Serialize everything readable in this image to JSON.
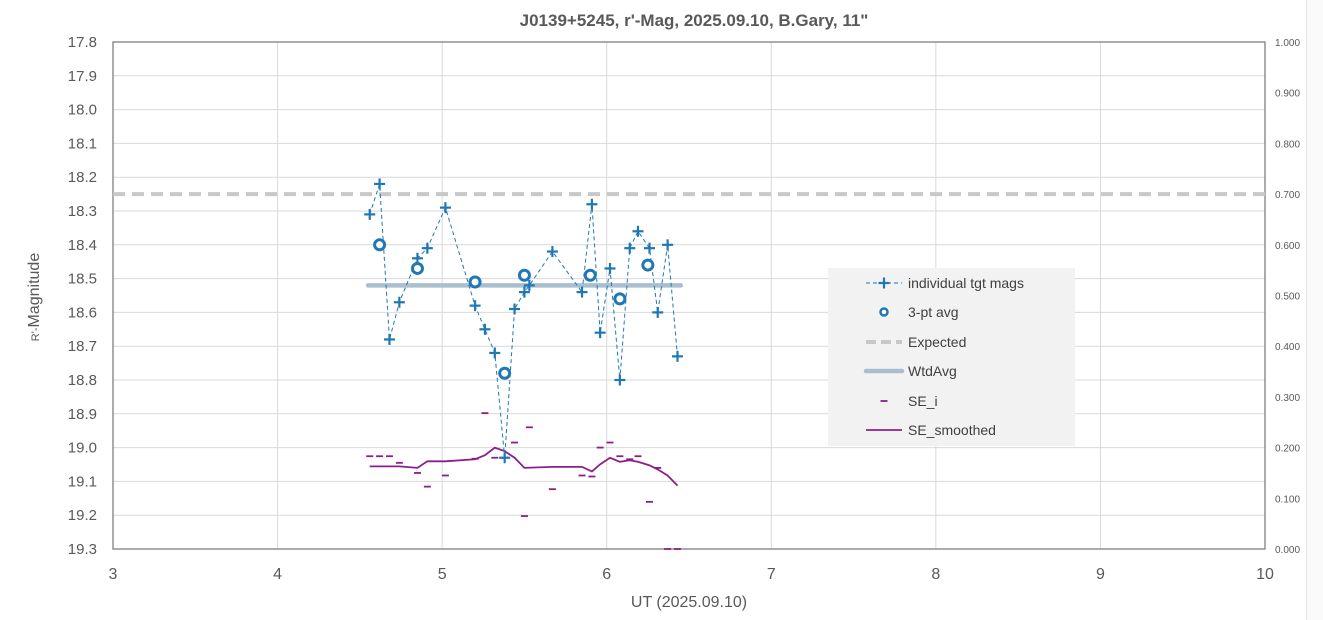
{
  "chart_data": {
    "type": "scatter",
    "title": "J0139+5245, r'-Mag, 2025.09.10, B.Gary, 11\"",
    "xlabel": "UT (2025.09.10)",
    "ylabel_prefix": "R'-",
    "ylabel_main": "Magnitude",
    "xlim": [
      3,
      10
    ],
    "ylim_left": [
      17.8,
      19.3
    ],
    "y_left_inverted": true,
    "ylim_right": [
      0.0,
      1.0
    ],
    "grid": true,
    "legend_position": "right",
    "x_ticks": [
      "3",
      "4",
      "5",
      "6",
      "7",
      "8",
      "9",
      "10"
    ],
    "y_left_ticks": [
      "17.8",
      "17.9",
      "18.0",
      "18.1",
      "18.2",
      "18.3",
      "18.4",
      "18.5",
      "18.6",
      "18.7",
      "18.8",
      "18.9",
      "19.0",
      "19.1",
      "19.2",
      "19.3"
    ],
    "y_right_ticks": [
      "1.000",
      "0.900",
      "0.800",
      "0.700",
      "0.600",
      "0.500",
      "0.400",
      "0.300",
      "0.200",
      "0.100",
      "0.000"
    ],
    "series": [
      {
        "name": "individual tgt mags",
        "axis": "left",
        "color": "#1f77b4",
        "x": [
          4.56,
          4.62,
          4.68,
          4.74,
          4.85,
          4.91,
          5.02,
          5.2,
          5.26,
          5.32,
          5.38,
          5.44,
          5.5,
          5.53,
          5.67,
          5.85,
          5.91,
          5.96,
          6.02,
          6.08,
          6.14,
          6.19,
          6.26,
          6.31,
          6.37,
          6.43
        ],
        "y": [
          18.31,
          18.22,
          18.68,
          18.57,
          18.44,
          18.41,
          18.29,
          18.58,
          18.65,
          18.72,
          19.03,
          18.59,
          18.54,
          18.52,
          18.42,
          18.54,
          18.28,
          18.66,
          18.47,
          18.8,
          18.41,
          18.36,
          18.41,
          18.6,
          18.4,
          18.73
        ]
      },
      {
        "name": "3-pt avg",
        "axis": "left",
        "color": "#1f77b4",
        "x": [
          4.62,
          4.85,
          5.2,
          5.38,
          5.5,
          5.9,
          6.08,
          6.25
        ],
        "y": [
          18.4,
          18.47,
          18.51,
          18.78,
          18.49,
          18.49,
          18.56,
          18.46
        ]
      },
      {
        "name": "Expected",
        "axis": "left",
        "color": "#c8c8c8",
        "x": [
          3,
          10
        ],
        "y": [
          18.25,
          18.25
        ]
      },
      {
        "name": "WtdAvg",
        "axis": "left",
        "color": "#a9bfcf",
        "x": [
          4.55,
          6.45
        ],
        "y": [
          18.52,
          18.52
        ]
      },
      {
        "name": "SE_i",
        "axis": "right",
        "color": "#8b1f8b",
        "x": [
          4.56,
          4.62,
          4.68,
          4.74,
          4.85,
          4.91,
          5.02,
          5.2,
          5.26,
          5.32,
          5.38,
          5.44,
          5.5,
          5.53,
          5.67,
          5.85,
          5.91,
          5.96,
          6.02,
          6.08,
          6.14,
          6.19,
          6.26,
          6.31,
          6.37,
          6.43
        ],
        "y": [
          0.183,
          0.183,
          0.183,
          0.17,
          0.15,
          0.123,
          0.145,
          0.178,
          0.268,
          0.18,
          0.18,
          0.21,
          0.065,
          0.24,
          0.118,
          0.145,
          0.143,
          0.2,
          0.21,
          0.183,
          0.177,
          0.183,
          0.093,
          0.16,
          0.0,
          0.0
        ]
      },
      {
        "name": "SE_smoothed",
        "axis": "right",
        "color": "#8b1f8b",
        "x": [
          4.56,
          4.68,
          4.74,
          4.85,
          4.91,
          5.02,
          5.2,
          5.26,
          5.32,
          5.38,
          5.44,
          5.5,
          5.67,
          5.85,
          5.91,
          5.96,
          6.02,
          6.08,
          6.14,
          6.19,
          6.26,
          6.31,
          6.37,
          6.43
        ],
        "y": [
          0.163,
          0.163,
          0.163,
          0.16,
          0.173,
          0.173,
          0.177,
          0.185,
          0.2,
          0.193,
          0.18,
          0.16,
          0.162,
          0.162,
          0.153,
          0.167,
          0.18,
          0.172,
          0.175,
          0.172,
          0.165,
          0.157,
          0.145,
          0.125
        ]
      }
    ]
  }
}
